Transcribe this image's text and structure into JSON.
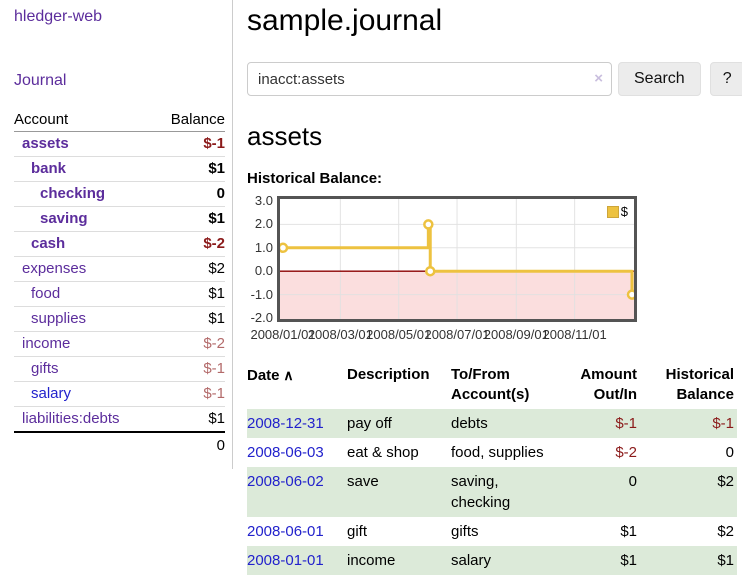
{
  "app": {
    "brand": "hledger-web",
    "nav_journal": "Journal"
  },
  "header": {
    "title": "sample.journal"
  },
  "search": {
    "value": "inacct:assets",
    "clear_icon": "×",
    "button_label": "Search",
    "help_label": "?"
  },
  "account_page": {
    "heading": "assets",
    "chart_label": "Historical Balance:"
  },
  "sidebar": {
    "columns": {
      "account": "Account",
      "balance": "Balance"
    },
    "accounts": [
      {
        "name": "assets",
        "depth": 0,
        "balance": "$-1",
        "bold": true,
        "balance_class": "neg-strong",
        "link_class": ""
      },
      {
        "name": "bank",
        "depth": 1,
        "balance": "$1",
        "bold": true,
        "balance_class": "",
        "link_class": ""
      },
      {
        "name": "checking",
        "depth": 2,
        "balance": "0",
        "bold": true,
        "balance_class": "",
        "link_class": ""
      },
      {
        "name": "saving",
        "depth": 2,
        "balance": "$1",
        "bold": true,
        "balance_class": "",
        "link_class": ""
      },
      {
        "name": "cash",
        "depth": 1,
        "balance": "$-2",
        "bold": true,
        "balance_class": "neg-strong",
        "link_class": ""
      },
      {
        "name": "expenses",
        "depth": 0,
        "balance": "$2",
        "bold": false,
        "balance_class": "",
        "link_class": ""
      },
      {
        "name": "food",
        "depth": 1,
        "balance": "$1",
        "bold": false,
        "balance_class": "",
        "link_class": ""
      },
      {
        "name": "supplies",
        "depth": 1,
        "balance": "$1",
        "bold": false,
        "balance_class": "",
        "link_class": ""
      },
      {
        "name": "income",
        "depth": 0,
        "balance": "$-2",
        "bold": false,
        "balance_class": "neg-soft",
        "link_class": ""
      },
      {
        "name": "gifts",
        "depth": 1,
        "balance": "$-1",
        "bold": false,
        "balance_class": "neg-soft",
        "link_class": ""
      },
      {
        "name": "salary",
        "depth": 1,
        "balance": "$-1",
        "bold": false,
        "balance_class": "neg-soft",
        "link_class": "blue"
      },
      {
        "name": "liabilities:debts",
        "depth": 0,
        "balance": "$1",
        "bold": false,
        "balance_class": "",
        "link_class": ""
      }
    ],
    "total": "0"
  },
  "chart_data": {
    "type": "line",
    "title": "Historical Balance",
    "series": [
      {
        "name": "$",
        "x": [
          "2008-01-01",
          "2008-06-01",
          "2008-06-03",
          "2008-12-31"
        ],
        "values": [
          1,
          2,
          0,
          -1
        ]
      }
    ],
    "series_label": "$",
    "step": true,
    "x_days": [
      0,
      152,
      154,
      365
    ],
    "x_range_days": 365,
    "ylim": [
      -2,
      3
    ],
    "y_ticks": [
      {
        "label": "3.0",
        "value": 3
      },
      {
        "label": "2.0",
        "value": 2
      },
      {
        "label": "1.0",
        "value": 1
      },
      {
        "label": "0.0",
        "value": 0
      },
      {
        "label": "-1.0",
        "value": -1
      },
      {
        "label": "-2.0",
        "value": -2
      }
    ],
    "x_ticks": [
      {
        "label": "2008/01/01",
        "day": 0
      },
      {
        "label": "2008/03/01",
        "day": 60
      },
      {
        "label": "2008/05/01",
        "day": 121
      },
      {
        "label": "2008/07/01",
        "day": 182
      },
      {
        "label": "2008/09/01",
        "day": 244
      },
      {
        "label": "2008/11/01",
        "day": 305
      }
    ],
    "grid": true,
    "legend_position": "top-right",
    "line_color": "#edc240",
    "marker_fill": "#ffffff",
    "negative_region_color": "#fbdede",
    "zero_line_color": "#8b0000",
    "gridline_color": "#e0e0e0"
  },
  "register": {
    "columns": [
      {
        "label": "Date",
        "sort_icon": "∧",
        "align": "left"
      },
      {
        "label": "Description",
        "align": "left"
      },
      {
        "label": "To/From Account(s)",
        "align": "left"
      },
      {
        "label": "Amount Out/In",
        "align": "right"
      },
      {
        "label": "Historical Balance",
        "align": "right"
      }
    ],
    "rows": [
      {
        "date": "2008-12-31",
        "description": "pay off",
        "accounts": "debts",
        "amount": "$-1",
        "amount_neg": true,
        "balance": "$-1",
        "balance_neg": true,
        "shaded": true
      },
      {
        "date": "2008-06-03",
        "description": "eat & shop",
        "accounts": "food, supplies",
        "amount": "$-2",
        "amount_neg": true,
        "balance": "0",
        "balance_neg": false,
        "shaded": false
      },
      {
        "date": "2008-06-02",
        "description": "save",
        "accounts": "saving, checking",
        "amount": "0",
        "amount_neg": false,
        "balance": "$2",
        "balance_neg": false,
        "shaded": true
      },
      {
        "date": "2008-06-01",
        "description": "gift",
        "accounts": "gifts",
        "amount": "$1",
        "amount_neg": false,
        "balance": "$2",
        "balance_neg": false,
        "shaded": false
      },
      {
        "date": "2008-01-01",
        "description": "income",
        "accounts": "salary",
        "amount": "$1",
        "amount_neg": false,
        "balance": "$1",
        "balance_neg": false,
        "shaded": true
      }
    ]
  }
}
